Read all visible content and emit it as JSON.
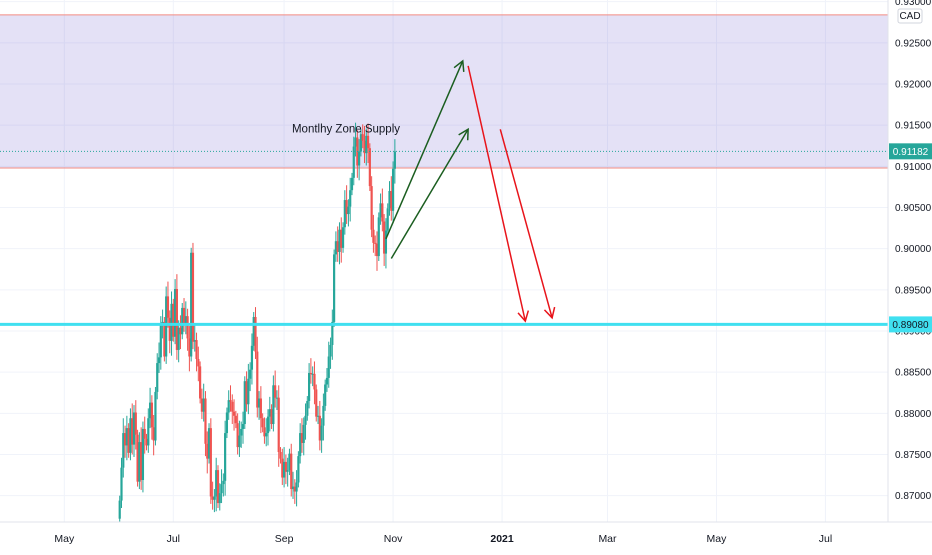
{
  "chart_data": {
    "type": "candlestick",
    "currency": "CAD",
    "annotation": "Montlhy Zone Supply",
    "current_price": 0.91182,
    "current_price_label": "0.91182",
    "level_line": 0.8908,
    "level_label": "0.89080",
    "supply_zone": [
      0.9098,
      0.9284
    ],
    "ylim": [
      0.8668,
      0.9302
    ],
    "y_ticks": [
      0.87,
      0.875,
      0.88,
      0.885,
      0.89,
      0.895,
      0.9,
      0.905,
      0.91,
      0.915,
      0.92,
      0.925,
      0.93
    ],
    "y_tick_labels": [
      "0.87000",
      "0.87500",
      "0.88000",
      "0.88500",
      "0.89000",
      "0.89500",
      "0.90000",
      "0.90500",
      "0.91000",
      "0.91500",
      "0.92000",
      "0.92500",
      "0.93000"
    ],
    "x_ticks": [
      "May",
      "Jul",
      "Sep",
      "Nov",
      "2021",
      "Mar",
      "May",
      "Jul"
    ],
    "x_tick_days": [
      0,
      61,
      123,
      184,
      245,
      304,
      365,
      426
    ],
    "xlim_days": [
      -36,
      461
    ],
    "candles_start_day": 31,
    "colors": {
      "up": "#26a69a",
      "down": "#ef5350",
      "zone": "#6a5acd",
      "zone_border": "#f28b82",
      "level": "#40e0f0",
      "bull_arrow": "#1b5e20",
      "bear_arrow": "#e8141b"
    },
    "projections": [
      {
        "color": "bull",
        "from": [
          180,
          0.9012
        ],
        "to": [
          223,
          0.9228
        ]
      },
      {
        "color": "bull",
        "from": [
          183,
          0.8988
        ],
        "to": [
          226,
          0.9145
        ]
      },
      {
        "color": "bear",
        "from": [
          226,
          0.9222
        ],
        "to": [
          258,
          0.8912
        ]
      },
      {
        "color": "bear",
        "from": [
          244,
          0.9145
        ],
        "to": [
          273,
          0.8916
        ]
      }
    ],
    "closes": [
      0.8694,
      0.8734,
      0.8776,
      0.8761,
      0.8782,
      0.8752,
      0.8794,
      0.8762,
      0.8801,
      0.8774,
      0.8717,
      0.8765,
      0.8719,
      0.8781,
      0.8769,
      0.8761,
      0.8794,
      0.8813,
      0.8783,
      0.8767,
      0.8826,
      0.8861,
      0.8868,
      0.8909,
      0.8911,
      0.8869,
      0.8942,
      0.8916,
      0.8888,
      0.8933,
      0.8893,
      0.8951,
      0.8877,
      0.8904,
      0.8896,
      0.8928,
      0.8908,
      0.8918,
      0.8891,
      0.8869,
      0.8995,
      0.8887,
      0.8889,
      0.8866,
      0.8857,
      0.8818,
      0.8802,
      0.8818,
      0.8763,
      0.8745,
      0.8782,
      0.8699,
      0.8695,
      0.8699,
      0.8731,
      0.8691,
      0.8703,
      0.8714,
      0.8718,
      0.8776,
      0.8801,
      0.8816,
      0.8814,
      0.8802,
      0.8797,
      0.8788,
      0.8759,
      0.8773,
      0.8781,
      0.8787,
      0.8839,
      0.8811,
      0.8842,
      0.8853,
      0.8882,
      0.8917,
      0.8875,
      0.8807,
      0.8818,
      0.8794,
      0.8783,
      0.8772,
      0.8776,
      0.8796,
      0.8805,
      0.8787,
      0.8834,
      0.8819,
      0.8819,
      0.8753,
      0.8745,
      0.8722,
      0.8741,
      0.8729,
      0.8731,
      0.8751,
      0.8708,
      0.8711,
      0.8705,
      0.8716,
      0.8748,
      0.8776,
      0.8764,
      0.8786,
      0.8797,
      0.8815,
      0.8849,
      0.8848,
      0.8848,
      0.8829,
      0.8796,
      0.8797,
      0.8767,
      0.8785,
      0.8809,
      0.8835,
      0.8843,
      0.8869,
      0.8883,
      0.8911,
      0.8993,
      0.9009,
      0.8996,
      0.9023,
      0.9001,
      0.9026,
      0.9059,
      0.9042,
      0.9051,
      0.9071,
      0.9086,
      0.9124,
      0.9135,
      0.9101,
      0.9118,
      0.9139,
      0.9131,
      0.9116,
      0.9137,
      0.9122,
      0.9076,
      0.9023,
      0.9007,
      0.9006,
      0.8991,
      0.9038,
      0.9055,
      0.9033,
      0.8994,
      0.9022,
      0.9049,
      0.907,
      0.9046,
      0.9097,
      0.9118
    ]
  }
}
